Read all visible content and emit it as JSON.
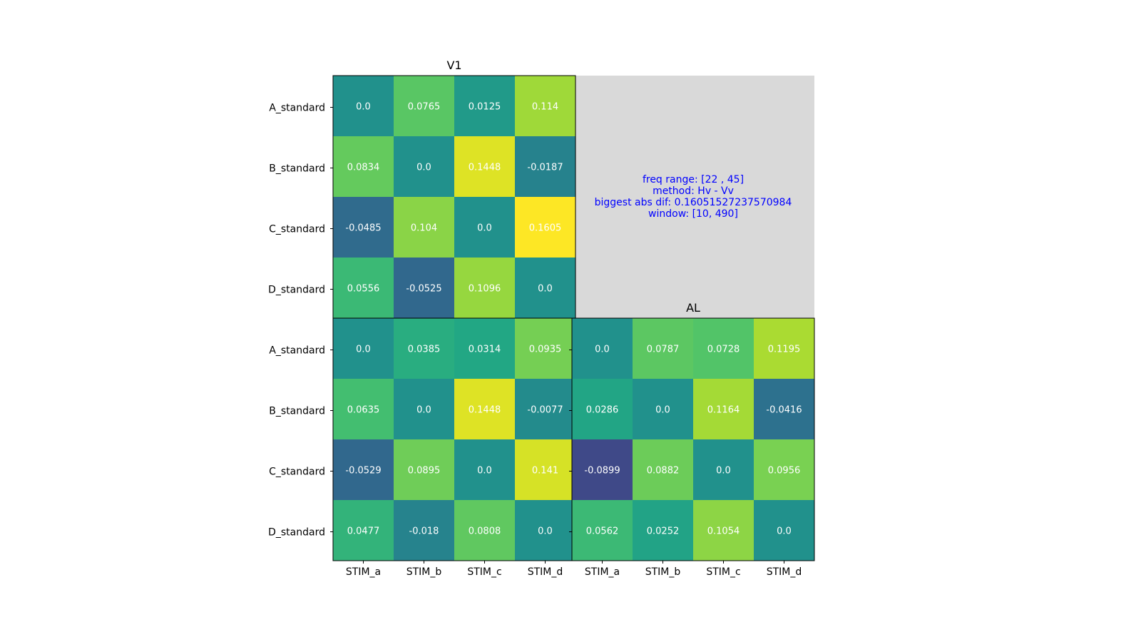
{
  "chart_data": [
    {
      "type": "heatmap",
      "title": "V1",
      "x_tick_labels": [
        "STIM_a",
        "STIM_b",
        "STIM_c",
        "STIM_d"
      ],
      "y_tick_labels": [
        "A_standard",
        "B_standard",
        "C_standard",
        "D_standard"
      ],
      "values": [
        [
          0.0,
          0.0765,
          0.0125,
          0.114
        ],
        [
          0.0834,
          0.0,
          0.1448,
          -0.0187
        ],
        [
          -0.0485,
          0.104,
          0.0,
          0.1605
        ],
        [
          0.0556,
          -0.0525,
          0.1096,
          0.0
        ]
      ],
      "cell_labels": [
        [
          "0.0",
          "0.0765",
          "0.0125",
          "0.114"
        ],
        [
          "0.0834",
          "0.0",
          "0.1448",
          "-0.0187"
        ],
        [
          "-0.0485",
          "0.104",
          "0.0",
          "0.1605"
        ],
        [
          "0.0556",
          "-0.0525",
          "0.1096",
          "0.0"
        ]
      ],
      "colormap": "viridis",
      "color_range": [
        -0.1605,
        0.1605
      ]
    },
    {
      "type": "heatmap",
      "title": "",
      "x_tick_labels": [
        "STIM_a",
        "STIM_b",
        "STIM_c",
        "STIM_d"
      ],
      "y_tick_labels": [
        "A_standard",
        "B_standard",
        "C_standard",
        "D_standard"
      ],
      "values": [
        [
          0.0,
          0.0385,
          0.0314,
          0.0935
        ],
        [
          0.0635,
          0.0,
          0.1448,
          -0.0077
        ],
        [
          -0.0529,
          0.0895,
          0.0,
          0.141
        ],
        [
          0.0477,
          -0.018,
          0.0808,
          0.0
        ]
      ],
      "cell_labels": [
        [
          "0.0",
          "0.0385",
          "0.0314",
          "0.0935"
        ],
        [
          "0.0635",
          "0.0",
          "0.1448",
          "-0.0077"
        ],
        [
          "-0.0529",
          "0.0895",
          "0.0",
          "0.141"
        ],
        [
          "0.0477",
          "-0.018",
          "0.0808",
          "0.0"
        ]
      ],
      "colormap": "viridis",
      "color_range": [
        -0.1605,
        0.1605
      ]
    },
    {
      "type": "heatmap",
      "title": "AL",
      "x_tick_labels": [
        "STIM_a",
        "STIM_b",
        "STIM_c",
        "STIM_d"
      ],
      "y_tick_labels": [
        "A_standard",
        "B_standard",
        "C_standard",
        "D_standard"
      ],
      "values": [
        [
          0.0,
          0.0787,
          0.0728,
          0.1195
        ],
        [
          0.0286,
          0.0,
          0.1164,
          -0.0416
        ],
        [
          -0.0899,
          0.0882,
          0.0,
          0.0956
        ],
        [
          0.0562,
          0.0252,
          0.1054,
          0.0
        ]
      ],
      "cell_labels": [
        [
          "0.0",
          "0.0787",
          "0.0728",
          "0.1195"
        ],
        [
          "0.0286",
          "0.0",
          "0.1164",
          "-0.0416"
        ],
        [
          "-0.0899",
          "0.0882",
          "0.0",
          "0.0956"
        ],
        [
          "0.0562",
          "0.0252",
          "0.1054",
          "0.0"
        ]
      ],
      "colormap": "viridis",
      "color_range": [
        -0.1605,
        0.1605
      ]
    }
  ],
  "info_panel": {
    "lines": [
      "freq range: [22 , 45]",
      "method: Hv - Vv",
      "biggest abs dif: 0.16051527237570984",
      "window: [10, 490]"
    ],
    "text_color": "#0000ff",
    "background": "#d9d9d9"
  },
  "colors": {
    "cell_text": "#ffffff",
    "axis": "#000000"
  }
}
